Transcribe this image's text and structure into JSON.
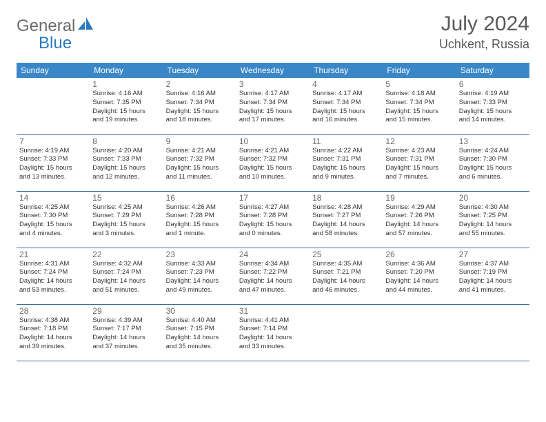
{
  "brand": {
    "part1": "General",
    "part2": "Blue"
  },
  "title": "July 2024",
  "location": "Uchkent, Russia",
  "colors": {
    "header_bg": "#3a87c8",
    "header_text": "#ffffff",
    "row_border": "#3a6a99",
    "title_text": "#5a5a5a",
    "logo_gray": "#6a6a6a",
    "logo_blue": "#2b7bbf",
    "cell_text": "#333333",
    "daynum_text": "#6a6a6a",
    "background": "#ffffff"
  },
  "weekdays": [
    "Sunday",
    "Monday",
    "Tuesday",
    "Wednesday",
    "Thursday",
    "Friday",
    "Saturday"
  ],
  "weeks": [
    [
      null,
      {
        "d": "1",
        "sr": "Sunrise: 4:16 AM",
        "ss": "Sunset: 7:35 PM",
        "dl1": "Daylight: 15 hours",
        "dl2": "and 19 minutes."
      },
      {
        "d": "2",
        "sr": "Sunrise: 4:16 AM",
        "ss": "Sunset: 7:34 PM",
        "dl1": "Daylight: 15 hours",
        "dl2": "and 18 minutes."
      },
      {
        "d": "3",
        "sr": "Sunrise: 4:17 AM",
        "ss": "Sunset: 7:34 PM",
        "dl1": "Daylight: 15 hours",
        "dl2": "and 17 minutes."
      },
      {
        "d": "4",
        "sr": "Sunrise: 4:17 AM",
        "ss": "Sunset: 7:34 PM",
        "dl1": "Daylight: 15 hours",
        "dl2": "and 16 minutes."
      },
      {
        "d": "5",
        "sr": "Sunrise: 4:18 AM",
        "ss": "Sunset: 7:34 PM",
        "dl1": "Daylight: 15 hours",
        "dl2": "and 15 minutes."
      },
      {
        "d": "6",
        "sr": "Sunrise: 4:19 AM",
        "ss": "Sunset: 7:33 PM",
        "dl1": "Daylight: 15 hours",
        "dl2": "and 14 minutes."
      }
    ],
    [
      {
        "d": "7",
        "sr": "Sunrise: 4:19 AM",
        "ss": "Sunset: 7:33 PM",
        "dl1": "Daylight: 15 hours",
        "dl2": "and 13 minutes."
      },
      {
        "d": "8",
        "sr": "Sunrise: 4:20 AM",
        "ss": "Sunset: 7:33 PM",
        "dl1": "Daylight: 15 hours",
        "dl2": "and 12 minutes."
      },
      {
        "d": "9",
        "sr": "Sunrise: 4:21 AM",
        "ss": "Sunset: 7:32 PM",
        "dl1": "Daylight: 15 hours",
        "dl2": "and 11 minutes."
      },
      {
        "d": "10",
        "sr": "Sunrise: 4:21 AM",
        "ss": "Sunset: 7:32 PM",
        "dl1": "Daylight: 15 hours",
        "dl2": "and 10 minutes."
      },
      {
        "d": "11",
        "sr": "Sunrise: 4:22 AM",
        "ss": "Sunset: 7:31 PM",
        "dl1": "Daylight: 15 hours",
        "dl2": "and 9 minutes."
      },
      {
        "d": "12",
        "sr": "Sunrise: 4:23 AM",
        "ss": "Sunset: 7:31 PM",
        "dl1": "Daylight: 15 hours",
        "dl2": "and 7 minutes."
      },
      {
        "d": "13",
        "sr": "Sunrise: 4:24 AM",
        "ss": "Sunset: 7:30 PM",
        "dl1": "Daylight: 15 hours",
        "dl2": "and 6 minutes."
      }
    ],
    [
      {
        "d": "14",
        "sr": "Sunrise: 4:25 AM",
        "ss": "Sunset: 7:30 PM",
        "dl1": "Daylight: 15 hours",
        "dl2": "and 4 minutes."
      },
      {
        "d": "15",
        "sr": "Sunrise: 4:25 AM",
        "ss": "Sunset: 7:29 PM",
        "dl1": "Daylight: 15 hours",
        "dl2": "and 3 minutes."
      },
      {
        "d": "16",
        "sr": "Sunrise: 4:26 AM",
        "ss": "Sunset: 7:28 PM",
        "dl1": "Daylight: 15 hours",
        "dl2": "and 1 minute."
      },
      {
        "d": "17",
        "sr": "Sunrise: 4:27 AM",
        "ss": "Sunset: 7:28 PM",
        "dl1": "Daylight: 15 hours",
        "dl2": "and 0 minutes."
      },
      {
        "d": "18",
        "sr": "Sunrise: 4:28 AM",
        "ss": "Sunset: 7:27 PM",
        "dl1": "Daylight: 14 hours",
        "dl2": "and 58 minutes."
      },
      {
        "d": "19",
        "sr": "Sunrise: 4:29 AM",
        "ss": "Sunset: 7:26 PM",
        "dl1": "Daylight: 14 hours",
        "dl2": "and 57 minutes."
      },
      {
        "d": "20",
        "sr": "Sunrise: 4:30 AM",
        "ss": "Sunset: 7:25 PM",
        "dl1": "Daylight: 14 hours",
        "dl2": "and 55 minutes."
      }
    ],
    [
      {
        "d": "21",
        "sr": "Sunrise: 4:31 AM",
        "ss": "Sunset: 7:24 PM",
        "dl1": "Daylight: 14 hours",
        "dl2": "and 53 minutes."
      },
      {
        "d": "22",
        "sr": "Sunrise: 4:32 AM",
        "ss": "Sunset: 7:24 PM",
        "dl1": "Daylight: 14 hours",
        "dl2": "and 51 minutes."
      },
      {
        "d": "23",
        "sr": "Sunrise: 4:33 AM",
        "ss": "Sunset: 7:23 PM",
        "dl1": "Daylight: 14 hours",
        "dl2": "and 49 minutes."
      },
      {
        "d": "24",
        "sr": "Sunrise: 4:34 AM",
        "ss": "Sunset: 7:22 PM",
        "dl1": "Daylight: 14 hours",
        "dl2": "and 47 minutes."
      },
      {
        "d": "25",
        "sr": "Sunrise: 4:35 AM",
        "ss": "Sunset: 7:21 PM",
        "dl1": "Daylight: 14 hours",
        "dl2": "and 46 minutes."
      },
      {
        "d": "26",
        "sr": "Sunrise: 4:36 AM",
        "ss": "Sunset: 7:20 PM",
        "dl1": "Daylight: 14 hours",
        "dl2": "and 44 minutes."
      },
      {
        "d": "27",
        "sr": "Sunrise: 4:37 AM",
        "ss": "Sunset: 7:19 PM",
        "dl1": "Daylight: 14 hours",
        "dl2": "and 41 minutes."
      }
    ],
    [
      {
        "d": "28",
        "sr": "Sunrise: 4:38 AM",
        "ss": "Sunset: 7:18 PM",
        "dl1": "Daylight: 14 hours",
        "dl2": "and 39 minutes."
      },
      {
        "d": "29",
        "sr": "Sunrise: 4:39 AM",
        "ss": "Sunset: 7:17 PM",
        "dl1": "Daylight: 14 hours",
        "dl2": "and 37 minutes."
      },
      {
        "d": "30",
        "sr": "Sunrise: 4:40 AM",
        "ss": "Sunset: 7:15 PM",
        "dl1": "Daylight: 14 hours",
        "dl2": "and 35 minutes."
      },
      {
        "d": "31",
        "sr": "Sunrise: 4:41 AM",
        "ss": "Sunset: 7:14 PM",
        "dl1": "Daylight: 14 hours",
        "dl2": "and 33 minutes."
      },
      null,
      null,
      null
    ]
  ]
}
